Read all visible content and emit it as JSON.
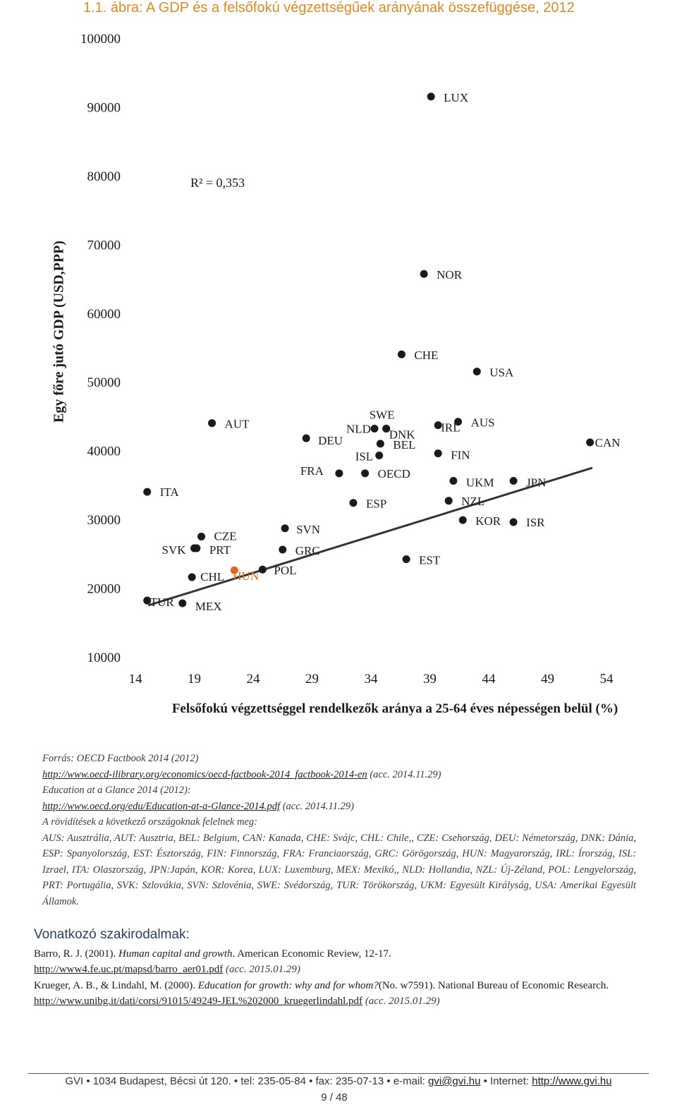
{
  "figure": {
    "title": "1.1. ábra: A GDP és a felsőfokú végzettségűek arányának összefüggése, 2012",
    "title_color": "#e08a1e"
  },
  "chart_data": {
    "type": "scatter",
    "xlabel": "Felsőfokú végzettséggel rendelkezők aránya a 25-64 éves népességen belül (%)",
    "ylabel": "Egy főre jutó GDP (USD,PPP)",
    "xlim": [
      14,
      54
    ],
    "ylim": [
      10000,
      100000
    ],
    "x_ticks": [
      14,
      19,
      24,
      29,
      34,
      39,
      44,
      49,
      54
    ],
    "y_ticks": [
      10000,
      20000,
      30000,
      40000,
      50000,
      60000,
      70000,
      80000,
      90000,
      100000
    ],
    "grid": false,
    "r_squared_label": "R² = 0,353",
    "trendline": {
      "x": [
        15.1,
        52.8
      ],
      "y": [
        17500,
        37500
      ]
    },
    "point_color": "#1a1a1a",
    "highlight_color": "#e0681a",
    "points": [
      {
        "label": "TUR",
        "x": 15,
        "y": 18200
      },
      {
        "label": "MEX",
        "x": 18,
        "y": 17800
      },
      {
        "label": "ITA",
        "x": 15,
        "y": 34000
      },
      {
        "label": "SVK",
        "x": 19,
        "y": 25800
      },
      {
        "label": "CHL",
        "x": 18.8,
        "y": 21600
      },
      {
        "label": "CZE",
        "x": 19.6,
        "y": 27500
      },
      {
        "label": "PRT",
        "x": 19.2,
        "y": 25800
      },
      {
        "label": "AUT",
        "x": 20.5,
        "y": 44000
      },
      {
        "label": "HUN",
        "x": 22.4,
        "y": 22600,
        "highlight": true
      },
      {
        "label": "POL",
        "x": 24.8,
        "y": 22700
      },
      {
        "label": "DEU",
        "x": 28.5,
        "y": 41800
      },
      {
        "label": "SVN",
        "x": 26.7,
        "y": 28700
      },
      {
        "label": "GRC",
        "x": 26.5,
        "y": 25600
      },
      {
        "label": "FRA",
        "x": 31.3,
        "y": 36700
      },
      {
        "label": "ESP",
        "x": 32.5,
        "y": 32400
      },
      {
        "label": "OECD",
        "x": 33.5,
        "y": 36700
      },
      {
        "label": "NLD",
        "x": 34.3,
        "y": 43200
      },
      {
        "label": "SWE",
        "x": 35.3,
        "y": 43200
      },
      {
        "label": "DNK",
        "x": 35.3,
        "y": 43200
      },
      {
        "label": "BEL",
        "x": 34.8,
        "y": 41000
      },
      {
        "label": "ISL",
        "x": 34.7,
        "y": 39300
      },
      {
        "label": "CHE",
        "x": 36.6,
        "y": 54000
      },
      {
        "label": "EST",
        "x": 37,
        "y": 24200
      },
      {
        "label": "NOR",
        "x": 38.5,
        "y": 65700
      },
      {
        "label": "LUX",
        "x": 39.1,
        "y": 91500
      },
      {
        "label": "IRL",
        "x": 39.7,
        "y": 43700
      },
      {
        "label": "FIN",
        "x": 39.7,
        "y": 39600
      },
      {
        "label": "AUS",
        "x": 41.4,
        "y": 44200
      },
      {
        "label": "USA",
        "x": 43,
        "y": 51500
      },
      {
        "label": "UKM",
        "x": 41,
        "y": 35600
      },
      {
        "label": "NZL",
        "x": 40.6,
        "y": 32700
      },
      {
        "label": "KOR",
        "x": 41.8,
        "y": 29900
      },
      {
        "label": "JPN",
        "x": 46.1,
        "y": 35600
      },
      {
        "label": "ISR",
        "x": 46.1,
        "y": 29600
      },
      {
        "label": "CAN",
        "x": 52.6,
        "y": 41200
      }
    ]
  },
  "notes": {
    "source": "Forrás: OECD Factbook 2014 (2012)",
    "link1": "http://www.oecd-ilibrary.org/economics/oecd-factbook-2014_factbook-2014-en",
    "link1_acc": " (acc. 2014.11.29)",
    "line3": "Education at a Glance 2014 (2012):",
    "link2": "http://www.oecd.org/edu/Education-at-a-Glance-2014.pdf",
    "link2_acc": " (acc. 2014.11.29)",
    "abbr_intro": "A rövidítések a következő országoknak felelnek meg:",
    "abbr_text": "AUS: Ausztrália, AUT: Ausztria, BEL: Belgium, CAN: Kanada, CHE: Svájc, CHL: Chile,, CZE: Csehország, DEU: Németország, DNK: Dánia, ESP: Spanyolország, EST: Észtország, FIN: Finnország, FRA: Franciaország, GRC: Görögország, HUN: Magyarország, IRL: Írország, ISL: Izrael, ITA: Olaszország, JPN:Japán, KOR: Korea, LUX: Luxemburg, MEX: Mexikó,, NLD: Hollandia, NZL: Új-Zéland, POL: Lengyelország, PRT: Portugália, SVK: Szlovákia, SVN: Szlovénia, SWE: Svédország, TUR: Törökország, UKM: Egyesült Királyság, USA: Amerikai Egyesült Államok."
  },
  "refs": {
    "heading": "Vonatkozó szakirodalmak:",
    "ref1_authors": "Barro, R. J. (2001). ",
    "ref1_title": "Human capital and growth",
    "ref1_rest": ". American Economic Review, 12-17.",
    "ref1_link": "http://www4.fe.uc.pt/mapsd/barro_aer01.pdf",
    "ref1_acc": " (acc. 2015.01.29)",
    "ref2_authors": "Krueger, A. B., & Lindahl, M. (2000). ",
    "ref2_title": "Education for growth: why and for whom?",
    "ref2_rest": "(No. w7591). National Bureau of Economic Research.",
    "ref2_link": "http://www.unibg.it/dati/corsi/91015/49249-JEL%202000_kruegerlindahl.pdf",
    "ref2_acc": " (acc. 2015.01.29)"
  },
  "footer": {
    "address": "GVI • 1034 Budapest, Bécsi út 120. • tel: 235-05-84 • fax: 235-07-13 • e-mail: ",
    "email": "gvi@gvi.hu",
    "internet_label": " • Internet: ",
    "website": "http://www.gvi.hu",
    "page": "9 / 48"
  }
}
